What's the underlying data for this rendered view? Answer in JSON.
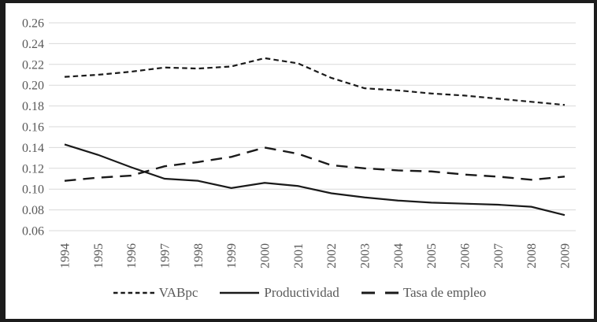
{
  "chart_data": {
    "type": "line",
    "title": "",
    "xlabel": "",
    "ylabel": "",
    "categories": [
      "1994",
      "1995",
      "1996",
      "1997",
      "1998",
      "1999",
      "2000",
      "2001",
      "2002",
      "2003",
      "2004",
      "2005",
      "2006",
      "2007",
      "2008",
      "2009"
    ],
    "series": [
      {
        "name": "VABpc",
        "style": "dotted",
        "values": [
          0.208,
          0.21,
          0.213,
          0.217,
          0.216,
          0.218,
          0.226,
          0.221,
          0.207,
          0.197,
          0.195,
          0.192,
          0.19,
          0.187,
          0.184,
          0.181
        ]
      },
      {
        "name": "Productividad",
        "style": "solid",
        "values": [
          0.143,
          0.133,
          0.121,
          0.11,
          0.108,
          0.101,
          0.106,
          0.103,
          0.096,
          0.092,
          0.089,
          0.087,
          0.086,
          0.085,
          0.083,
          0.075
        ]
      },
      {
        "name": "Tasa de empleo",
        "style": "dashed",
        "values": [
          0.108,
          0.111,
          0.113,
          0.122,
          0.126,
          0.131,
          0.14,
          0.134,
          0.123,
          0.12,
          0.118,
          0.117,
          0.114,
          0.112,
          0.109,
          0.112
        ]
      }
    ],
    "ylim": [
      0.06,
      0.26
    ],
    "y_ticks": [
      "0.26",
      "0.24",
      "0.22",
      "0.20",
      "0.18",
      "0.16",
      "0.14",
      "0.12",
      "0.10",
      "0.08",
      "0.06"
    ],
    "grid": "horizontal",
    "legend_position": "bottom",
    "colors": {
      "line": "#1a1a1a",
      "grid": "#d9d9d9",
      "tick_label": "#595959",
      "legend_text": "#595959",
      "frame": "#1c1c1c",
      "background": "#ffffff"
    }
  }
}
